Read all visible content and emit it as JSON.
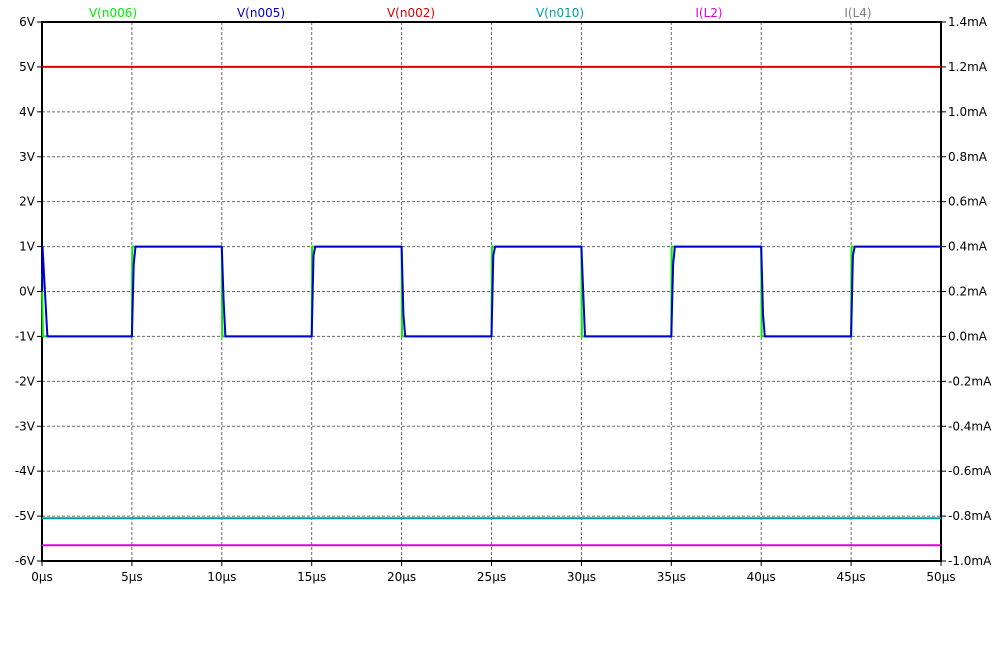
{
  "chart_data": {
    "type": "line",
    "x_ticks": [
      "0µs",
      "5µs",
      "10µs",
      "15µs",
      "20µs",
      "25µs",
      "30µs",
      "35µs",
      "40µs",
      "45µs",
      "50µs"
    ],
    "y_left_ticks": [
      "6V",
      "5V",
      "4V",
      "3V",
      "2V",
      "1V",
      "0V",
      "-1V",
      "-2V",
      "-3V",
      "-4V",
      "-5V",
      "-6V"
    ],
    "y_right_ticks": [
      "1.4mA",
      "1.2mA",
      "1.0mA",
      "0.8mA",
      "0.6mA",
      "0.4mA",
      "0.2mA",
      "0.0mA",
      "-0.2mA",
      "-0.4mA",
      "-0.6mA",
      "-0.8mA",
      "-1.0mA"
    ],
    "xlim_us": [
      0,
      50
    ],
    "ylim_left_V": [
      -6,
      6
    ],
    "ylim_right_mA": [
      -1.0,
      1.4
    ],
    "grid": true,
    "series": [
      {
        "name": "V(n006)",
        "color": "#00ee00",
        "axis": "left",
        "points": [
          [
            0,
            0.4
          ],
          [
            0.05,
            -1
          ],
          [
            5,
            -1
          ],
          [
            5.02,
            1
          ],
          [
            10,
            1
          ],
          [
            10.02,
            -1
          ],
          [
            15,
            -1
          ],
          [
            15.02,
            1
          ],
          [
            20,
            1
          ],
          [
            20.02,
            -1
          ],
          [
            25,
            -1
          ],
          [
            25.02,
            1
          ],
          [
            30,
            1
          ],
          [
            30.02,
            -1
          ],
          [
            35,
            -1
          ],
          [
            35.02,
            1
          ],
          [
            40,
            1
          ],
          [
            40.02,
            -1
          ],
          [
            45,
            -1
          ],
          [
            45.02,
            1
          ],
          [
            50,
            1
          ]
        ]
      },
      {
        "name": "V(n005)",
        "color": "#0000cc",
        "axis": "left",
        "points": [
          [
            0,
            0
          ],
          [
            0.03,
            1
          ],
          [
            0.3,
            -1
          ],
          [
            5,
            -1
          ],
          [
            5.1,
            0.6
          ],
          [
            5.2,
            1
          ],
          [
            10,
            1
          ],
          [
            10.1,
            -0.2
          ],
          [
            10.2,
            -1
          ],
          [
            15,
            -1
          ],
          [
            15.1,
            0.8
          ],
          [
            15.2,
            1
          ],
          [
            20,
            1
          ],
          [
            20.1,
            -0.5
          ],
          [
            20.2,
            -1
          ],
          [
            25,
            -1
          ],
          [
            25.1,
            0.8
          ],
          [
            25.2,
            1
          ],
          [
            30,
            1
          ],
          [
            30.2,
            -1
          ],
          [
            35,
            -1
          ],
          [
            35.1,
            0.6
          ],
          [
            35.2,
            1
          ],
          [
            40,
            1
          ],
          [
            40.1,
            -0.5
          ],
          [
            40.2,
            -1
          ],
          [
            45,
            -1
          ],
          [
            45.1,
            0.8
          ],
          [
            45.2,
            1
          ],
          [
            50,
            1
          ]
        ]
      },
      {
        "name": "V(n002)",
        "color": "#dd0000",
        "axis": "left",
        "points": [
          [
            0,
            5
          ],
          [
            50,
            5
          ]
        ]
      },
      {
        "name": "V(n010)",
        "color": "#00a0a0",
        "axis": "left",
        "points": [
          [
            0,
            -5.05
          ],
          [
            50,
            -5.05
          ]
        ]
      },
      {
        "name": "I(L2)",
        "color": "#dd00dd",
        "axis": "right",
        "points": [
          [
            0,
            -0.93
          ],
          [
            50,
            -0.93
          ]
        ]
      },
      {
        "name": "I(L4)",
        "color": "#808080",
        "axis": "right",
        "points": []
      }
    ]
  }
}
